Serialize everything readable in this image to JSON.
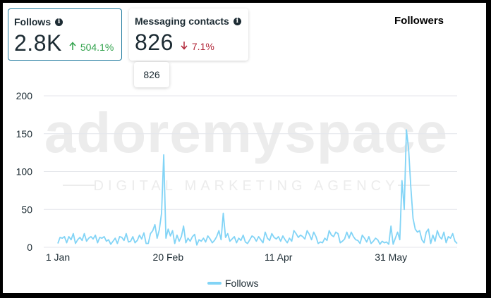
{
  "cards": [
    {
      "label": "Follows",
      "value": "2.8K",
      "delta": "504.1%",
      "direction": "up"
    },
    {
      "label": "Messaging contacts",
      "value": "826",
      "delta": "7.1%",
      "direction": "down"
    }
  ],
  "tooltip": {
    "value": "826"
  },
  "chart_title": "Followers",
  "watermark": {
    "brand": "adoremyspace",
    "tagline": "DIGITAL MARKETING AGENCY"
  },
  "colors": {
    "series": "#82d4f6",
    "grid": "#e4e6eb",
    "up": "#31a24c",
    "down": "#b2283a"
  },
  "chart_data": {
    "type": "line",
    "title": "Followers",
    "xlabel": "",
    "ylabel": "",
    "ylim": [
      0,
      200
    ],
    "yticks": [
      0,
      50,
      100,
      150,
      200
    ],
    "xticks": [
      {
        "day": 0,
        "label": "1 Jan"
      },
      {
        "day": 50,
        "label": "20 Feb"
      },
      {
        "day": 100,
        "label": "11 Apr"
      },
      {
        "day": 151,
        "label": "31 May"
      }
    ],
    "grid": true,
    "legend_position": "bottom-center",
    "series": [
      {
        "name": "Follows",
        "x_start": "1 Jan",
        "values": [
          5,
          13,
          12,
          14,
          6,
          14,
          10,
          18,
          5,
          10,
          13,
          9,
          18,
          8,
          12,
          14,
          11,
          16,
          6,
          13,
          12,
          14,
          8,
          10,
          4,
          8,
          12,
          5,
          14,
          13,
          9,
          18,
          7,
          8,
          14,
          6,
          9,
          16,
          11,
          19,
          5,
          5,
          18,
          22,
          30,
          12,
          23,
          45,
          122,
          12,
          24,
          15,
          22,
          5,
          16,
          8,
          14,
          28,
          6,
          12,
          8,
          14,
          17,
          3,
          10,
          8,
          12,
          7,
          15,
          11,
          6,
          9,
          14,
          22,
          10,
          45,
          13,
          18,
          8,
          11,
          14,
          6,
          12,
          9,
          16,
          7,
          5,
          10,
          15,
          13,
          8,
          14,
          10,
          6,
          20,
          12,
          9,
          18,
          13,
          11,
          14,
          8,
          15,
          10,
          6,
          12,
          8,
          22,
          18,
          13,
          16,
          14,
          11,
          22,
          17,
          10,
          20,
          14,
          5,
          7,
          6,
          12,
          9,
          22,
          16,
          14,
          20,
          18,
          6,
          8,
          11,
          20,
          12,
          20,
          14,
          10,
          9,
          5,
          16,
          12,
          7,
          14,
          5,
          8,
          12,
          10,
          4,
          8,
          6,
          7,
          4,
          28,
          4,
          12,
          20,
          10,
          88,
          50,
          155,
          130,
          80,
          38,
          24,
          20,
          22,
          10,
          6,
          20,
          24,
          5,
          16,
          8,
          22,
          14,
          11,
          20,
          6,
          14,
          12,
          18,
          8,
          5
        ]
      }
    ]
  }
}
